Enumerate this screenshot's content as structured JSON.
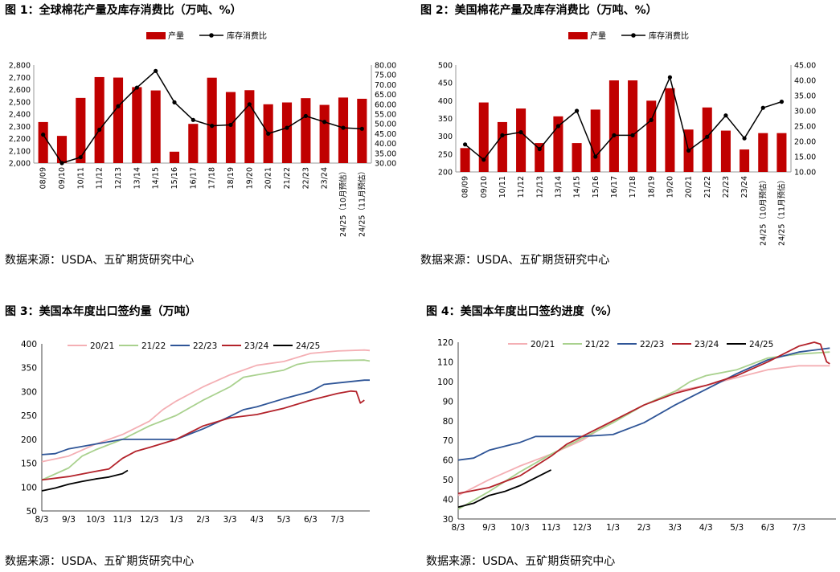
{
  "colors": {
    "bar": "#C00000",
    "consumption_line": "#000000",
    "s2021": "#F4AFB4",
    "s2122": "#A9D18E",
    "s2223": "#2F5597",
    "s2324": "#B3232B",
    "s2425": "#000000"
  },
  "panels": [
    {
      "title": "图 1：全球棉花产量及库存消费比（万吨、%）",
      "source": "数据来源：USDA、五矿期货研究中心"
    },
    {
      "title": "图 2：美国棉花产量及库存消费比（万吨、%）",
      "source": "数据来源：USDA、五矿期货研究中心"
    },
    {
      "title": "图 3：美国本年度出口签约量（万吨）",
      "source": "数据来源：USDA、五矿期货研究中心"
    },
    {
      "title": "图 4：美国本年度出口签约进度（%）",
      "source": "数据来源：USDA、五矿期货研究中心"
    }
  ],
  "chart_data": [
    {
      "type": "bar+line",
      "title": "图 1：全球棉花产量及库存消费比（万吨、%）",
      "legend": [
        "产量",
        "库存消费比"
      ],
      "categories": [
        "08/09",
        "09/10",
        "10/11",
        "11/12",
        "12/13",
        "13/14",
        "14/15",
        "15/16",
        "16/17",
        "17/18",
        "18/19",
        "19/20",
        "20/21",
        "21/22",
        "22/23",
        "23/24",
        "24/25（10月预估）",
        "24/25（11月预估）"
      ],
      "bar_series": {
        "name": "产量",
        "values": [
          2335,
          2222,
          2532,
          2702,
          2698,
          2620,
          2593,
          2093,
          2320,
          2697,
          2580,
          2595,
          2480,
          2495,
          2530,
          2475,
          2535,
          2525
        ]
      },
      "line_series": {
        "name": "库存消费比",
        "values": [
          44.5,
          30.0,
          33.0,
          47.0,
          59.0,
          68.5,
          77.0,
          61.0,
          52.0,
          49.0,
          49.5,
          60.0,
          45.0,
          48.0,
          54.0,
          51.0,
          48.0,
          47.5
        ]
      },
      "y_left": {
        "min": 2000,
        "max": 2800,
        "step": 100,
        "ticks": [
          "2,000",
          "2,100",
          "2,200",
          "2,300",
          "2,400",
          "2,500",
          "2,600",
          "2,700",
          "2,800"
        ]
      },
      "y_right": {
        "min": 30,
        "max": 80,
        "step": 5,
        "ticks": [
          "30.00",
          "35.00",
          "40.00",
          "45.00",
          "50.00",
          "55.00",
          "60.00",
          "65.00",
          "70.00",
          "75.00",
          "80.00"
        ]
      }
    },
    {
      "type": "bar+line",
      "title": "图 2：美国棉花产量及库存消费比（万吨、%）",
      "legend": [
        "产量",
        "库存消费比"
      ],
      "categories": [
        "08/09",
        "09/10",
        "10/11",
        "11/12",
        "12/13",
        "13/14",
        "14/15",
        "15/16",
        "16/17",
        "17/18",
        "18/19",
        "19/20",
        "20/21",
        "21/22",
        "22/23",
        "23/24",
        "24/25（10月预估）",
        "24/25（11月预估）"
      ],
      "bar_series": {
        "name": "产量",
        "values": [
          267,
          395,
          340,
          378,
          281,
          356,
          281,
          375,
          457,
          457,
          400,
          435,
          319,
          381,
          316,
          263,
          309,
          309
        ]
      },
      "line_series": {
        "name": "库存消费比",
        "values": [
          19.0,
          14.0,
          22.0,
          23.0,
          17.5,
          25.0,
          30.0,
          15.0,
          22.0,
          22.0,
          27.0,
          41.0,
          17.0,
          21.5,
          28.5,
          21.0,
          31.0,
          33.0
        ]
      },
      "y_left": {
        "min": 200,
        "max": 500,
        "step": 50,
        "ticks": [
          "200",
          "250",
          "300",
          "350",
          "400",
          "450",
          "500"
        ]
      },
      "y_right": {
        "min": 10,
        "max": 45,
        "step": 5,
        "ticks": [
          "10.00",
          "15.00",
          "20.00",
          "25.00",
          "30.00",
          "35.00",
          "40.00",
          "45.00"
        ]
      }
    },
    {
      "type": "line",
      "title": "图 3：美国本年度出口签约量（万吨）",
      "x_ticks": [
        "8/3",
        "9/3",
        "10/3",
        "11/3",
        "12/3",
        "1/3",
        "2/3",
        "3/3",
        "4/3",
        "5/3",
        "6/3",
        "7/3"
      ],
      "y": {
        "min": 50,
        "max": 400,
        "step": 50,
        "ticks": [
          "50",
          "100",
          "150",
          "200",
          "250",
          "300",
          "350",
          "400"
        ]
      },
      "x_range": [
        0,
        12.2
      ],
      "series": [
        {
          "name": "20/21",
          "color": "#F4AFB4",
          "points": [
            [
              0,
              153
            ],
            [
              1,
              165
            ],
            [
              2,
              190
            ],
            [
              3,
              210
            ],
            [
              4,
              238
            ],
            [
              4.5,
              262
            ],
            [
              5,
              280
            ],
            [
              6,
              310
            ],
            [
              7,
              335
            ],
            [
              8,
              355
            ],
            [
              9,
              363
            ],
            [
              10,
              380
            ],
            [
              11,
              385
            ],
            [
              12,
              387
            ],
            [
              12.2,
              386
            ]
          ]
        },
        {
          "name": "21/22",
          "color": "#A9D18E",
          "points": [
            [
              0,
              115
            ],
            [
              1,
              140
            ],
            [
              1.5,
              165
            ],
            [
              2,
              178
            ],
            [
              3,
              200
            ],
            [
              4,
              228
            ],
            [
              5,
              250
            ],
            [
              6,
              282
            ],
            [
              7,
              310
            ],
            [
              7.5,
              330
            ],
            [
              8,
              335
            ],
            [
              9,
              345
            ],
            [
              9.5,
              357
            ],
            [
              10,
              362
            ],
            [
              11,
              365
            ],
            [
              12,
              366
            ],
            [
              12.2,
              364
            ]
          ]
        },
        {
          "name": "22/23",
          "color": "#2F5597",
          "points": [
            [
              0,
              168
            ],
            [
              0.5,
              170
            ],
            [
              1,
              180
            ],
            [
              2,
              190
            ],
            [
              3,
              200
            ],
            [
              4,
              200
            ],
            [
              5,
              200
            ],
            [
              6,
              222
            ],
            [
              7,
              248
            ],
            [
              7.5,
              262
            ],
            [
              8,
              268
            ],
            [
              9,
              285
            ],
            [
              10,
              300
            ],
            [
              10.5,
              315
            ],
            [
              11,
              318
            ],
            [
              12,
              324
            ],
            [
              12.2,
              324
            ]
          ]
        },
        {
          "name": "23/24",
          "color": "#B3232B",
          "points": [
            [
              0,
              115
            ],
            [
              1,
              122
            ],
            [
              2,
              133
            ],
            [
              2.5,
              138
            ],
            [
              3,
              160
            ],
            [
              3.5,
              175
            ],
            [
              4,
              183
            ],
            [
              5,
              200
            ],
            [
              6,
              228
            ],
            [
              7,
              245
            ],
            [
              8,
              252
            ],
            [
              9,
              265
            ],
            [
              10,
              282
            ],
            [
              11,
              296
            ],
            [
              11.5,
              301
            ],
            [
              11.7,
              300
            ],
            [
              11.85,
              276
            ],
            [
              12.0,
              282
            ]
          ]
        },
        {
          "name": "24/25",
          "color": "#000000",
          "points": [
            [
              0,
              92
            ],
            [
              0.5,
              98
            ],
            [
              1,
              106
            ],
            [
              1.5,
              112
            ],
            [
              2,
              117
            ],
            [
              2.5,
              121
            ],
            [
              3,
              128
            ],
            [
              3.2,
              135
            ]
          ]
        }
      ]
    },
    {
      "type": "line",
      "title": "图 4：美国本年度出口签约进度（%）",
      "x_ticks": [
        "8/3",
        "9/3",
        "10/3",
        "11/3",
        "12/3",
        "1/3",
        "2/3",
        "3/3",
        "4/3",
        "5/3",
        "6/3",
        "7/3"
      ],
      "y": {
        "min": 30,
        "max": 120,
        "step": 10,
        "ticks": [
          "30",
          "40",
          "50",
          "60",
          "70",
          "80",
          "90",
          "100",
          "110",
          "120"
        ]
      },
      "x_range": [
        0,
        12.2
      ],
      "series": [
        {
          "name": "20/21",
          "color": "#F4AFB4",
          "points": [
            [
              0,
              42
            ],
            [
              1,
              50
            ],
            [
              2,
              57
            ],
            [
              3,
              63
            ],
            [
              4,
              70
            ],
            [
              5,
              80
            ],
            [
              6,
              88
            ],
            [
              7,
              95
            ],
            [
              8,
              98
            ],
            [
              9,
              102
            ],
            [
              10,
              106
            ],
            [
              11,
              108
            ],
            [
              12,
              108
            ]
          ]
        },
        {
          "name": "21/22",
          "color": "#A9D18E",
          "points": [
            [
              0,
              35
            ],
            [
              1,
              44
            ],
            [
              2,
              54
            ],
            [
              3,
              63
            ],
            [
              4,
              71
            ],
            [
              5,
              79
            ],
            [
              6,
              88
            ],
            [
              7,
              95
            ],
            [
              7.5,
              100
            ],
            [
              8,
              103
            ],
            [
              9,
              106
            ],
            [
              10,
              112
            ],
            [
              11,
              114
            ],
            [
              12,
              115
            ]
          ]
        },
        {
          "name": "22/23",
          "color": "#2F5597",
          "points": [
            [
              0,
              60
            ],
            [
              0.5,
              61
            ],
            [
              1,
              65
            ],
            [
              2,
              69
            ],
            [
              2.5,
              72
            ],
            [
              3,
              72
            ],
            [
              4,
              72
            ],
            [
              5,
              73
            ],
            [
              6,
              79
            ],
            [
              7,
              88
            ],
            [
              8,
              96
            ],
            [
              9,
              104
            ],
            [
              10,
              111
            ],
            [
              11,
              115
            ],
            [
              12,
              117
            ]
          ]
        },
        {
          "name": "23/24",
          "color": "#B3232B",
          "points": [
            [
              0,
              43
            ],
            [
              1,
              46
            ],
            [
              2,
              52
            ],
            [
              3,
              62
            ],
            [
              3.5,
              68
            ],
            [
              4,
              72
            ],
            [
              5,
              80
            ],
            [
              6,
              88
            ],
            [
              7,
              94
            ],
            [
              8,
              98
            ],
            [
              9,
              103
            ],
            [
              10,
              110
            ],
            [
              11,
              118
            ],
            [
              11.5,
              120
            ],
            [
              11.7,
              119
            ],
            [
              11.9,
              110
            ],
            [
              12.0,
              109
            ]
          ]
        },
        {
          "name": "24/25",
          "color": "#000000",
          "points": [
            [
              0,
              36
            ],
            [
              0.5,
              38
            ],
            [
              1,
              42
            ],
            [
              1.5,
              44
            ],
            [
              2,
              47
            ],
            [
              2.5,
              51
            ],
            [
              3,
              55
            ]
          ]
        }
      ]
    }
  ]
}
